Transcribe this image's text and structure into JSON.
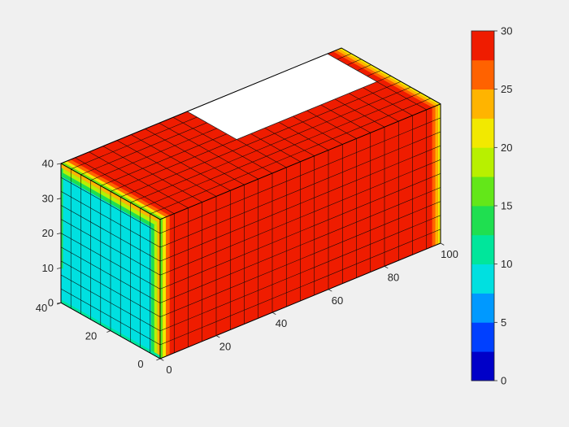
{
  "window": {
    "background_color": "#f0f0f0"
  },
  "chart_data": {
    "type": "surface3d",
    "title": "",
    "axes": {
      "x": {
        "range": [
          0,
          100
        ],
        "ticks": [
          0,
          20,
          40,
          60,
          80,
          100
        ]
      },
      "y": {
        "range": [
          0,
          40
        ],
        "ticks": [
          0,
          20,
          40
        ]
      },
      "z": {
        "range": [
          0,
          40
        ],
        "ticks": [
          0,
          10,
          20,
          30,
          40
        ]
      }
    },
    "colorbar": {
      "range": [
        0,
        30
      ],
      "ticks": [
        0,
        5,
        10,
        15,
        20,
        25,
        30
      ],
      "colors": [
        "#0000c8",
        "#0040ff",
        "#0099ff",
        "#00e0e0",
        "#00e69b",
        "#1fdf50",
        "#63e719",
        "#b8f000",
        "#f2e900",
        "#ffb400",
        "#ff6200",
        "#ef1c00"
      ]
    },
    "block": {
      "x_range": [
        0,
        100
      ],
      "y_range": [
        0,
        40
      ],
      "z_range": [
        0,
        40
      ],
      "grid_cells": {
        "x": 20,
        "y": 10,
        "z": 10
      }
    },
    "faces": {
      "left": {
        "plane": "x=0",
        "base_value": 10
      },
      "front": {
        "plane": "y=0",
        "base_value": 30
      },
      "top": {
        "plane": "z=40",
        "base_value": 30
      }
    },
    "edge_gradients": [
      {
        "face": "left",
        "u": [
          0,
          40
        ],
        "v": [
          38.8,
          40
        ],
        "value": 23
      },
      {
        "face": "left",
        "u": [
          0,
          40
        ],
        "v": [
          37.6,
          38.8
        ],
        "value": 19
      },
      {
        "face": "left",
        "u": [
          0,
          40
        ],
        "v": [
          36.4,
          37.6
        ],
        "value": 14
      },
      {
        "face": "left",
        "u": [
          0,
          1.2
        ],
        "v": [
          0,
          38.8
        ],
        "value": 23
      },
      {
        "face": "left",
        "u": [
          1.2,
          2.4
        ],
        "v": [
          0,
          37.6
        ],
        "value": 19
      },
      {
        "face": "left",
        "u": [
          2.4,
          3.6
        ],
        "v": [
          0,
          36.4
        ],
        "value": 14
      },
      {
        "face": "left",
        "u": [
          39.2,
          40
        ],
        "v": [
          10,
          38.8
        ],
        "value": 13.5
      },
      {
        "face": "left",
        "u": [
          0,
          40
        ],
        "v": [
          0,
          0.9
        ],
        "value": 12.5
      },
      {
        "face": "front",
        "u": [
          0,
          0.9
        ],
        "v": [
          0,
          40
        ],
        "value": 17
      },
      {
        "face": "front",
        "u": [
          0.9,
          2.1
        ],
        "v": [
          0,
          40
        ],
        "value": 20.5
      },
      {
        "face": "front",
        "u": [
          2.1,
          3.4
        ],
        "v": [
          0,
          40
        ],
        "value": 26
      },
      {
        "face": "front",
        "u": [
          99.1,
          100
        ],
        "v": [
          0,
          40
        ],
        "value": 21.5
      },
      {
        "face": "front",
        "u": [
          98.1,
          99.1
        ],
        "v": [
          0,
          40
        ],
        "value": 24
      },
      {
        "face": "front",
        "u": [
          97,
          98.1
        ],
        "v": [
          0,
          40
        ],
        "value": 26.5
      },
      {
        "face": "top",
        "u": [
          0,
          0.9
        ],
        "v": [
          0,
          40
        ],
        "value": 17
      },
      {
        "face": "top",
        "u": [
          0.9,
          2.1
        ],
        "v": [
          0,
          40
        ],
        "value": 20.5
      },
      {
        "face": "top",
        "u": [
          2.1,
          3.4
        ],
        "v": [
          0,
          40
        ],
        "value": 26
      },
      {
        "face": "top",
        "u": [
          99.1,
          100
        ],
        "v": [
          0,
          40
        ],
        "value": 21.5
      },
      {
        "face": "top",
        "u": [
          98.1,
          99.1
        ],
        "v": [
          0,
          40
        ],
        "value": 24
      },
      {
        "face": "top",
        "u": [
          97,
          98.1
        ],
        "v": [
          0,
          40
        ],
        "value": 26.5
      }
    ],
    "white_patch": {
      "face": "top",
      "x_range": [
        45,
        95
      ],
      "y_range": [
        20,
        40
      ],
      "color": "#ffffff"
    },
    "style": {
      "grid_line_color": "#0a0a0a",
      "outline_color": "#000000",
      "tick_color": "#262626",
      "label_color": "#262626"
    }
  }
}
